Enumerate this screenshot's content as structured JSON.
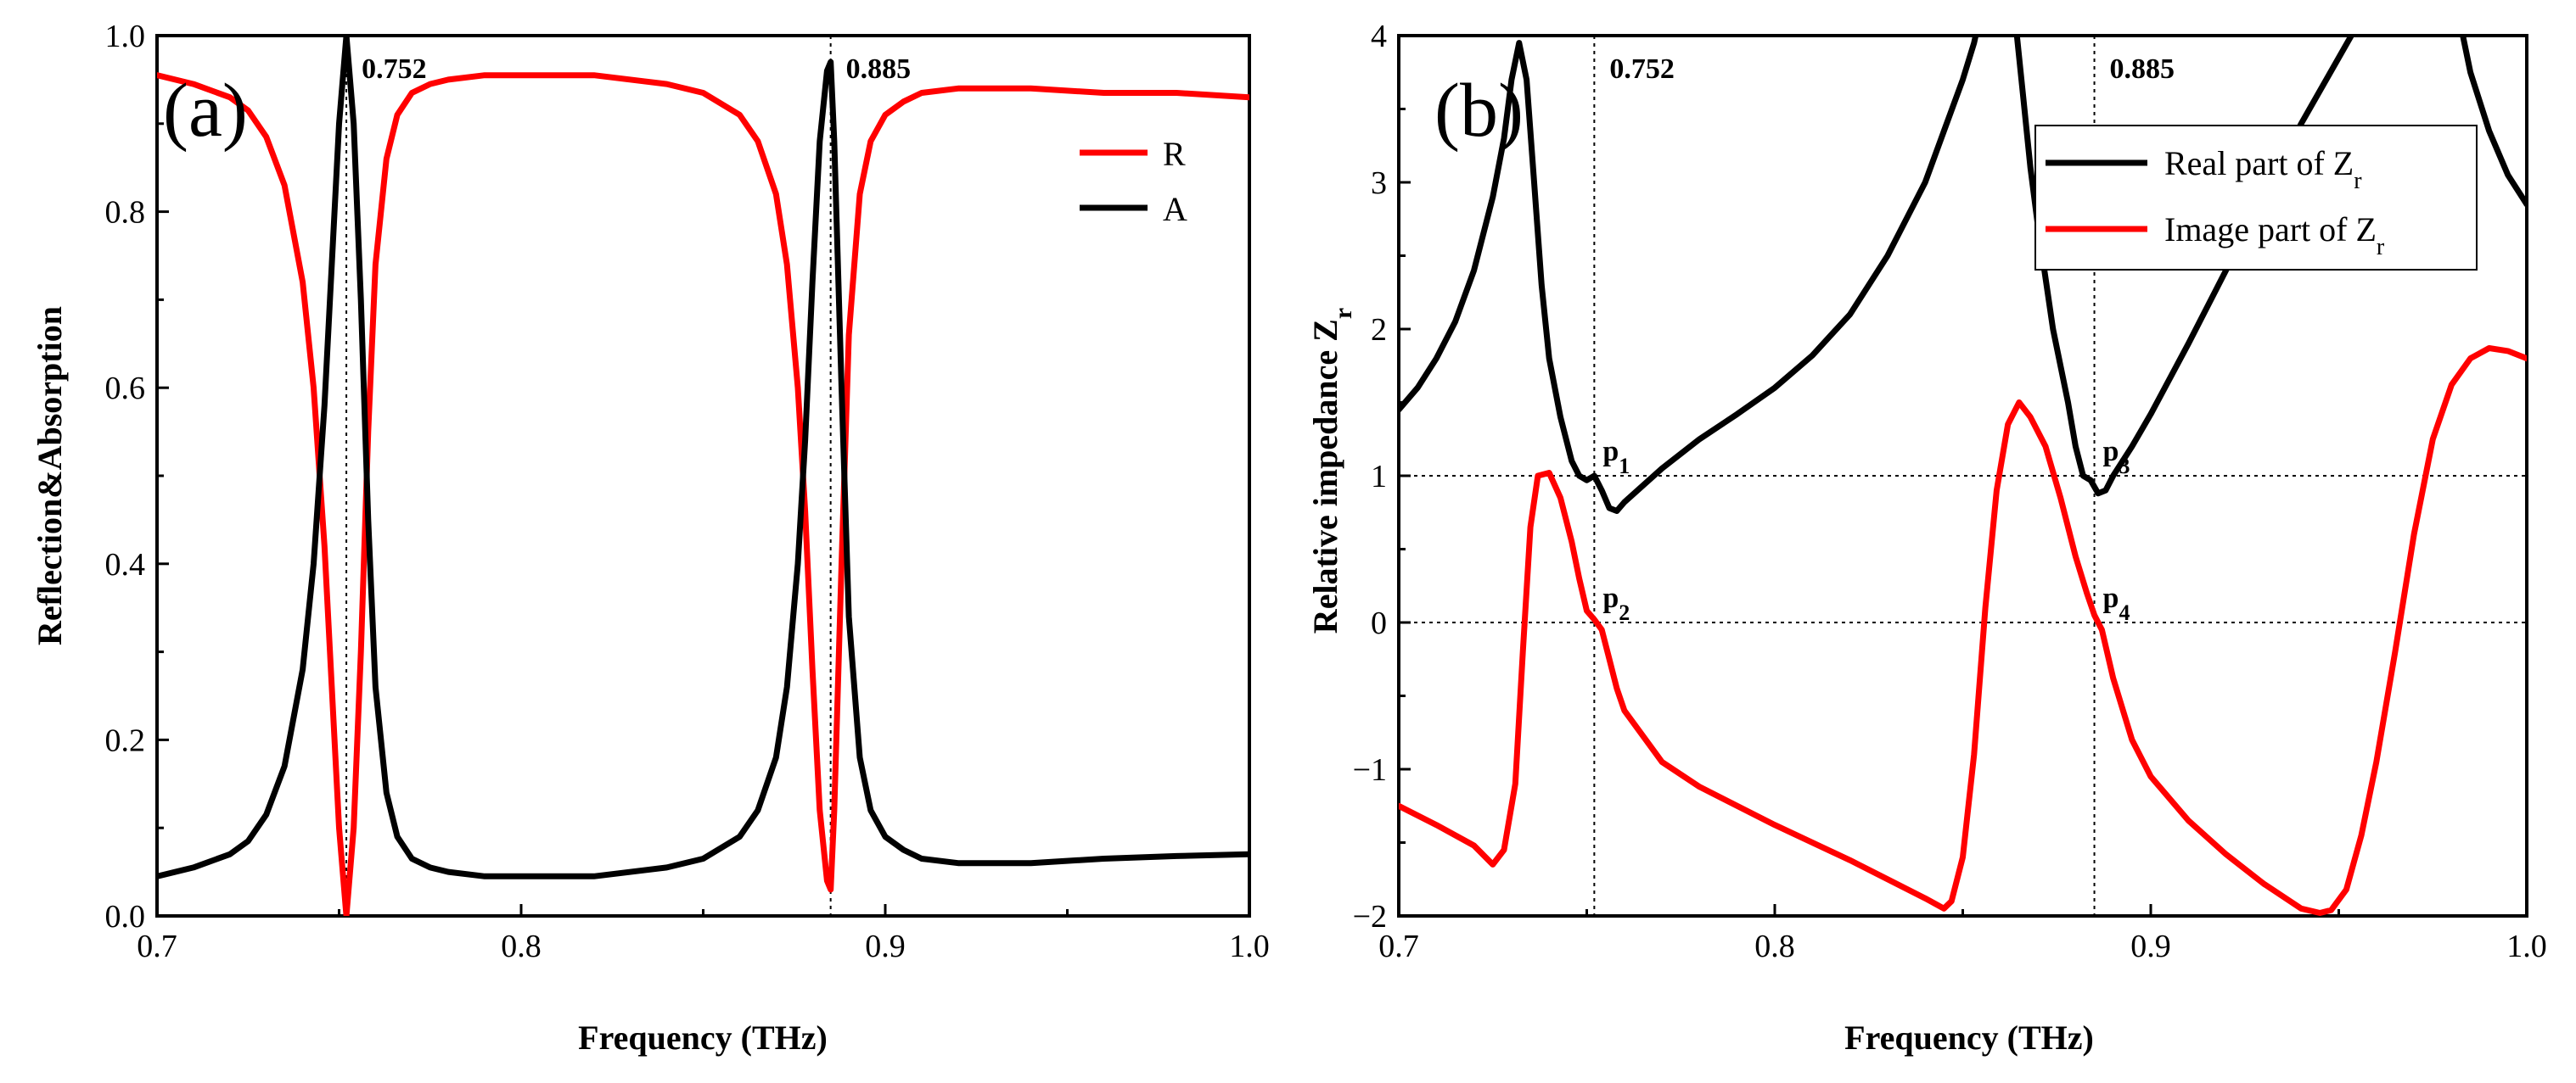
{
  "chart_data": [
    {
      "type": "line",
      "panel_label": "(a)",
      "xlabel": "Frequency (THz)",
      "ylabel": "Reflection&Absorption",
      "xlim": [
        0.7,
        1.0
      ],
      "ylim": [
        0.0,
        1.0
      ],
      "x_ticks": [
        0.7,
        0.8,
        0.9,
        1.0
      ],
      "x_tick_labels": [
        "0.7",
        "0.8",
        "0.9",
        "1.0"
      ],
      "y_ticks": [
        0.0,
        0.2,
        0.4,
        0.6,
        0.8,
        1.0
      ],
      "y_tick_labels": [
        "0.0",
        "0.2",
        "0.4",
        "0.6",
        "0.8",
        "1.0"
      ],
      "grid": false,
      "legend_position": "top-right",
      "annotations": [
        {
          "text": "0.752",
          "x": 0.752
        },
        {
          "text": "0.885",
          "x": 0.885
        }
      ],
      "vlines": [
        0.752,
        0.885
      ],
      "series": [
        {
          "name": "R",
          "color": "#ff0000",
          "x": [
            0.7,
            0.71,
            0.72,
            0.725,
            0.73,
            0.735,
            0.74,
            0.743,
            0.746,
            0.748,
            0.75,
            0.752,
            0.754,
            0.756,
            0.758,
            0.76,
            0.763,
            0.766,
            0.77,
            0.775,
            0.78,
            0.79,
            0.8,
            0.82,
            0.84,
            0.85,
            0.86,
            0.865,
            0.87,
            0.873,
            0.876,
            0.878,
            0.88,
            0.882,
            0.884,
            0.885,
            0.886,
            0.888,
            0.89,
            0.893,
            0.896,
            0.9,
            0.905,
            0.91,
            0.92,
            0.94,
            0.96,
            0.98,
            1.0
          ],
          "values": [
            0.955,
            0.945,
            0.93,
            0.915,
            0.885,
            0.83,
            0.72,
            0.6,
            0.42,
            0.26,
            0.1,
            0.0,
            0.1,
            0.3,
            0.55,
            0.74,
            0.86,
            0.91,
            0.935,
            0.945,
            0.95,
            0.955,
            0.955,
            0.955,
            0.945,
            0.935,
            0.91,
            0.88,
            0.82,
            0.74,
            0.6,
            0.46,
            0.28,
            0.12,
            0.04,
            0.03,
            0.12,
            0.4,
            0.66,
            0.82,
            0.88,
            0.91,
            0.925,
            0.935,
            0.94,
            0.94,
            0.935,
            0.935,
            0.93
          ]
        },
        {
          "name": "A",
          "color": "#000000",
          "x": [
            0.7,
            0.71,
            0.72,
            0.725,
            0.73,
            0.735,
            0.74,
            0.743,
            0.746,
            0.748,
            0.75,
            0.752,
            0.754,
            0.756,
            0.758,
            0.76,
            0.763,
            0.766,
            0.77,
            0.775,
            0.78,
            0.79,
            0.8,
            0.82,
            0.84,
            0.85,
            0.86,
            0.865,
            0.87,
            0.873,
            0.876,
            0.878,
            0.88,
            0.882,
            0.884,
            0.885,
            0.886,
            0.888,
            0.89,
            0.893,
            0.896,
            0.9,
            0.905,
            0.91,
            0.92,
            0.94,
            0.96,
            0.98,
            1.0
          ],
          "values": [
            0.045,
            0.055,
            0.07,
            0.085,
            0.115,
            0.17,
            0.28,
            0.4,
            0.58,
            0.74,
            0.9,
            1.0,
            0.9,
            0.7,
            0.45,
            0.26,
            0.14,
            0.09,
            0.065,
            0.055,
            0.05,
            0.045,
            0.045,
            0.045,
            0.055,
            0.065,
            0.09,
            0.12,
            0.18,
            0.26,
            0.4,
            0.54,
            0.72,
            0.88,
            0.96,
            0.97,
            0.88,
            0.6,
            0.34,
            0.18,
            0.12,
            0.09,
            0.075,
            0.065,
            0.06,
            0.06,
            0.065,
            0.068,
            0.07
          ]
        }
      ]
    },
    {
      "type": "line",
      "panel_label": "(b)",
      "xlabel": "Frequency (THz)",
      "ylabel": "Relative impedance Z",
      "ylabel_subscript": "r",
      "xlim": [
        0.7,
        1.0
      ],
      "ylim": [
        -2,
        4
      ],
      "x_ticks": [
        0.7,
        0.8,
        0.9,
        1.0
      ],
      "x_tick_labels": [
        "0.7",
        "0.8",
        "0.9",
        "1.0"
      ],
      "y_ticks": [
        -2,
        -1,
        0,
        1,
        2,
        3,
        4
      ],
      "y_tick_labels": [
        "−2",
        "−1",
        "0",
        "1",
        "2",
        "3",
        "4"
      ],
      "grid": false,
      "legend_position": "top-right",
      "hlines": [
        0,
        1
      ],
      "vlines": [
        0.752,
        0.885
      ],
      "annotations": [
        {
          "text": "0.752",
          "x": 0.752
        },
        {
          "text": "0.885",
          "x": 0.885
        }
      ],
      "points": [
        {
          "label": "p",
          "sub": "1",
          "x": 0.752,
          "y": 1.0
        },
        {
          "label": "p",
          "sub": "2",
          "x": 0.752,
          "y": 0.0
        },
        {
          "label": "p",
          "sub": "3",
          "x": 0.885,
          "y": 1.0
        },
        {
          "label": "p",
          "sub": "4",
          "x": 0.885,
          "y": 0.0
        }
      ],
      "series": [
        {
          "name": "Real part of Z",
          "name_subscript": "r",
          "color": "#000000",
          "x": [
            0.7,
            0.705,
            0.71,
            0.715,
            0.72,
            0.725,
            0.728,
            0.73,
            0.732,
            0.734,
            0.736,
            0.738,
            0.74,
            0.743,
            0.746,
            0.748,
            0.75,
            0.752,
            0.754,
            0.756,
            0.758,
            0.76,
            0.77,
            0.78,
            0.79,
            0.8,
            0.81,
            0.82,
            0.83,
            0.84,
            0.845,
            0.85,
            0.853,
            0.856,
            0.858,
            0.86,
            0.862,
            0.864,
            0.866,
            0.868,
            0.87,
            0.874,
            0.878,
            0.88,
            0.882,
            0.884,
            0.886,
            0.888,
            0.89,
            0.895,
            0.9,
            0.91,
            0.92,
            0.93,
            0.94,
            0.95,
            0.96,
            0.965,
            0.97,
            0.975,
            0.98,
            0.983,
            0.985,
            0.99,
            0.995,
            1.0
          ],
          "values": [
            1.45,
            1.6,
            1.8,
            2.05,
            2.4,
            2.9,
            3.3,
            3.7,
            3.95,
            3.7,
            3.0,
            2.3,
            1.8,
            1.4,
            1.1,
            1.0,
            0.97,
            1.0,
            0.9,
            0.78,
            0.76,
            0.82,
            1.05,
            1.25,
            1.42,
            1.6,
            1.82,
            2.1,
            2.5,
            3.0,
            3.35,
            3.7,
            3.95,
            4.3,
            4.3,
            4.3,
            4.3,
            4.1,
            3.6,
            3.1,
            2.7,
            2.0,
            1.5,
            1.2,
            1.0,
            0.97,
            0.88,
            0.9,
            1.0,
            1.2,
            1.42,
            1.9,
            2.4,
            2.9,
            3.4,
            3.85,
            4.3,
            4.3,
            4.3,
            4.3,
            4.3,
            4.0,
            3.75,
            3.35,
            3.05,
            2.85
          ]
        },
        {
          "name": "Image part of Z",
          "name_subscript": "r",
          "color": "#ff0000",
          "x": [
            0.7,
            0.71,
            0.72,
            0.725,
            0.728,
            0.731,
            0.733,
            0.735,
            0.737,
            0.74,
            0.743,
            0.746,
            0.748,
            0.75,
            0.752,
            0.754,
            0.756,
            0.758,
            0.76,
            0.77,
            0.78,
            0.8,
            0.82,
            0.83,
            0.84,
            0.845,
            0.847,
            0.85,
            0.853,
            0.856,
            0.859,
            0.862,
            0.865,
            0.868,
            0.872,
            0.876,
            0.88,
            0.883,
            0.885,
            0.887,
            0.89,
            0.895,
            0.9,
            0.91,
            0.92,
            0.93,
            0.94,
            0.945,
            0.948,
            0.952,
            0.956,
            0.96,
            0.965,
            0.97,
            0.975,
            0.98,
            0.985,
            0.99,
            0.995,
            1.0
          ],
          "values": [
            -1.25,
            -1.38,
            -1.52,
            -1.65,
            -1.55,
            -1.1,
            -0.2,
            0.65,
            1.0,
            1.02,
            0.85,
            0.55,
            0.3,
            0.08,
            0.02,
            -0.05,
            -0.25,
            -0.45,
            -0.6,
            -0.95,
            -1.12,
            -1.38,
            -1.62,
            -1.75,
            -1.88,
            -1.95,
            -1.9,
            -1.6,
            -0.9,
            0.1,
            0.9,
            1.35,
            1.5,
            1.4,
            1.2,
            0.85,
            0.45,
            0.2,
            0.05,
            -0.05,
            -0.38,
            -0.8,
            -1.05,
            -1.35,
            -1.58,
            -1.78,
            -1.95,
            -1.98,
            -1.96,
            -1.82,
            -1.45,
            -0.95,
            -0.2,
            0.6,
            1.25,
            1.62,
            1.8,
            1.87,
            1.85,
            1.8
          ]
        }
      ]
    }
  ]
}
